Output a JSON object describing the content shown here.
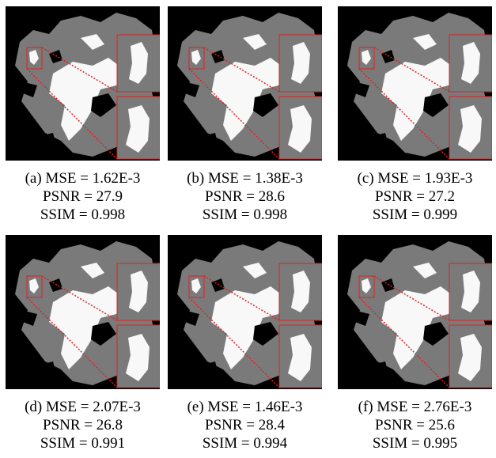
{
  "panels": [
    {
      "caption": [
        "(a) MSE = 1.62E-3",
        "PSNR = 27.9",
        "SSIM = 0.998"
      ]
    },
    {
      "caption": [
        "(b) MSE = 1.38E-3",
        "PSNR = 28.6",
        "SSIM = 0.998"
      ]
    },
    {
      "caption": [
        "(c) MSE = 1.93E-3",
        "PSNR = 27.2",
        "SSIM = 0.999"
      ]
    },
    {
      "caption": [
        "(d) MSE = 2.07E-3",
        "PSNR = 26.8",
        "SSIM = 0.991"
      ]
    },
    {
      "caption": [
        "(e) MSE = 1.46E-3",
        "PSNR = 28.4",
        "SSIM = 0.994"
      ]
    },
    {
      "caption": [
        "(f) MSE = 2.76E-3",
        "PSNR = 25.6",
        "SSIM = 0.995"
      ]
    }
  ]
}
